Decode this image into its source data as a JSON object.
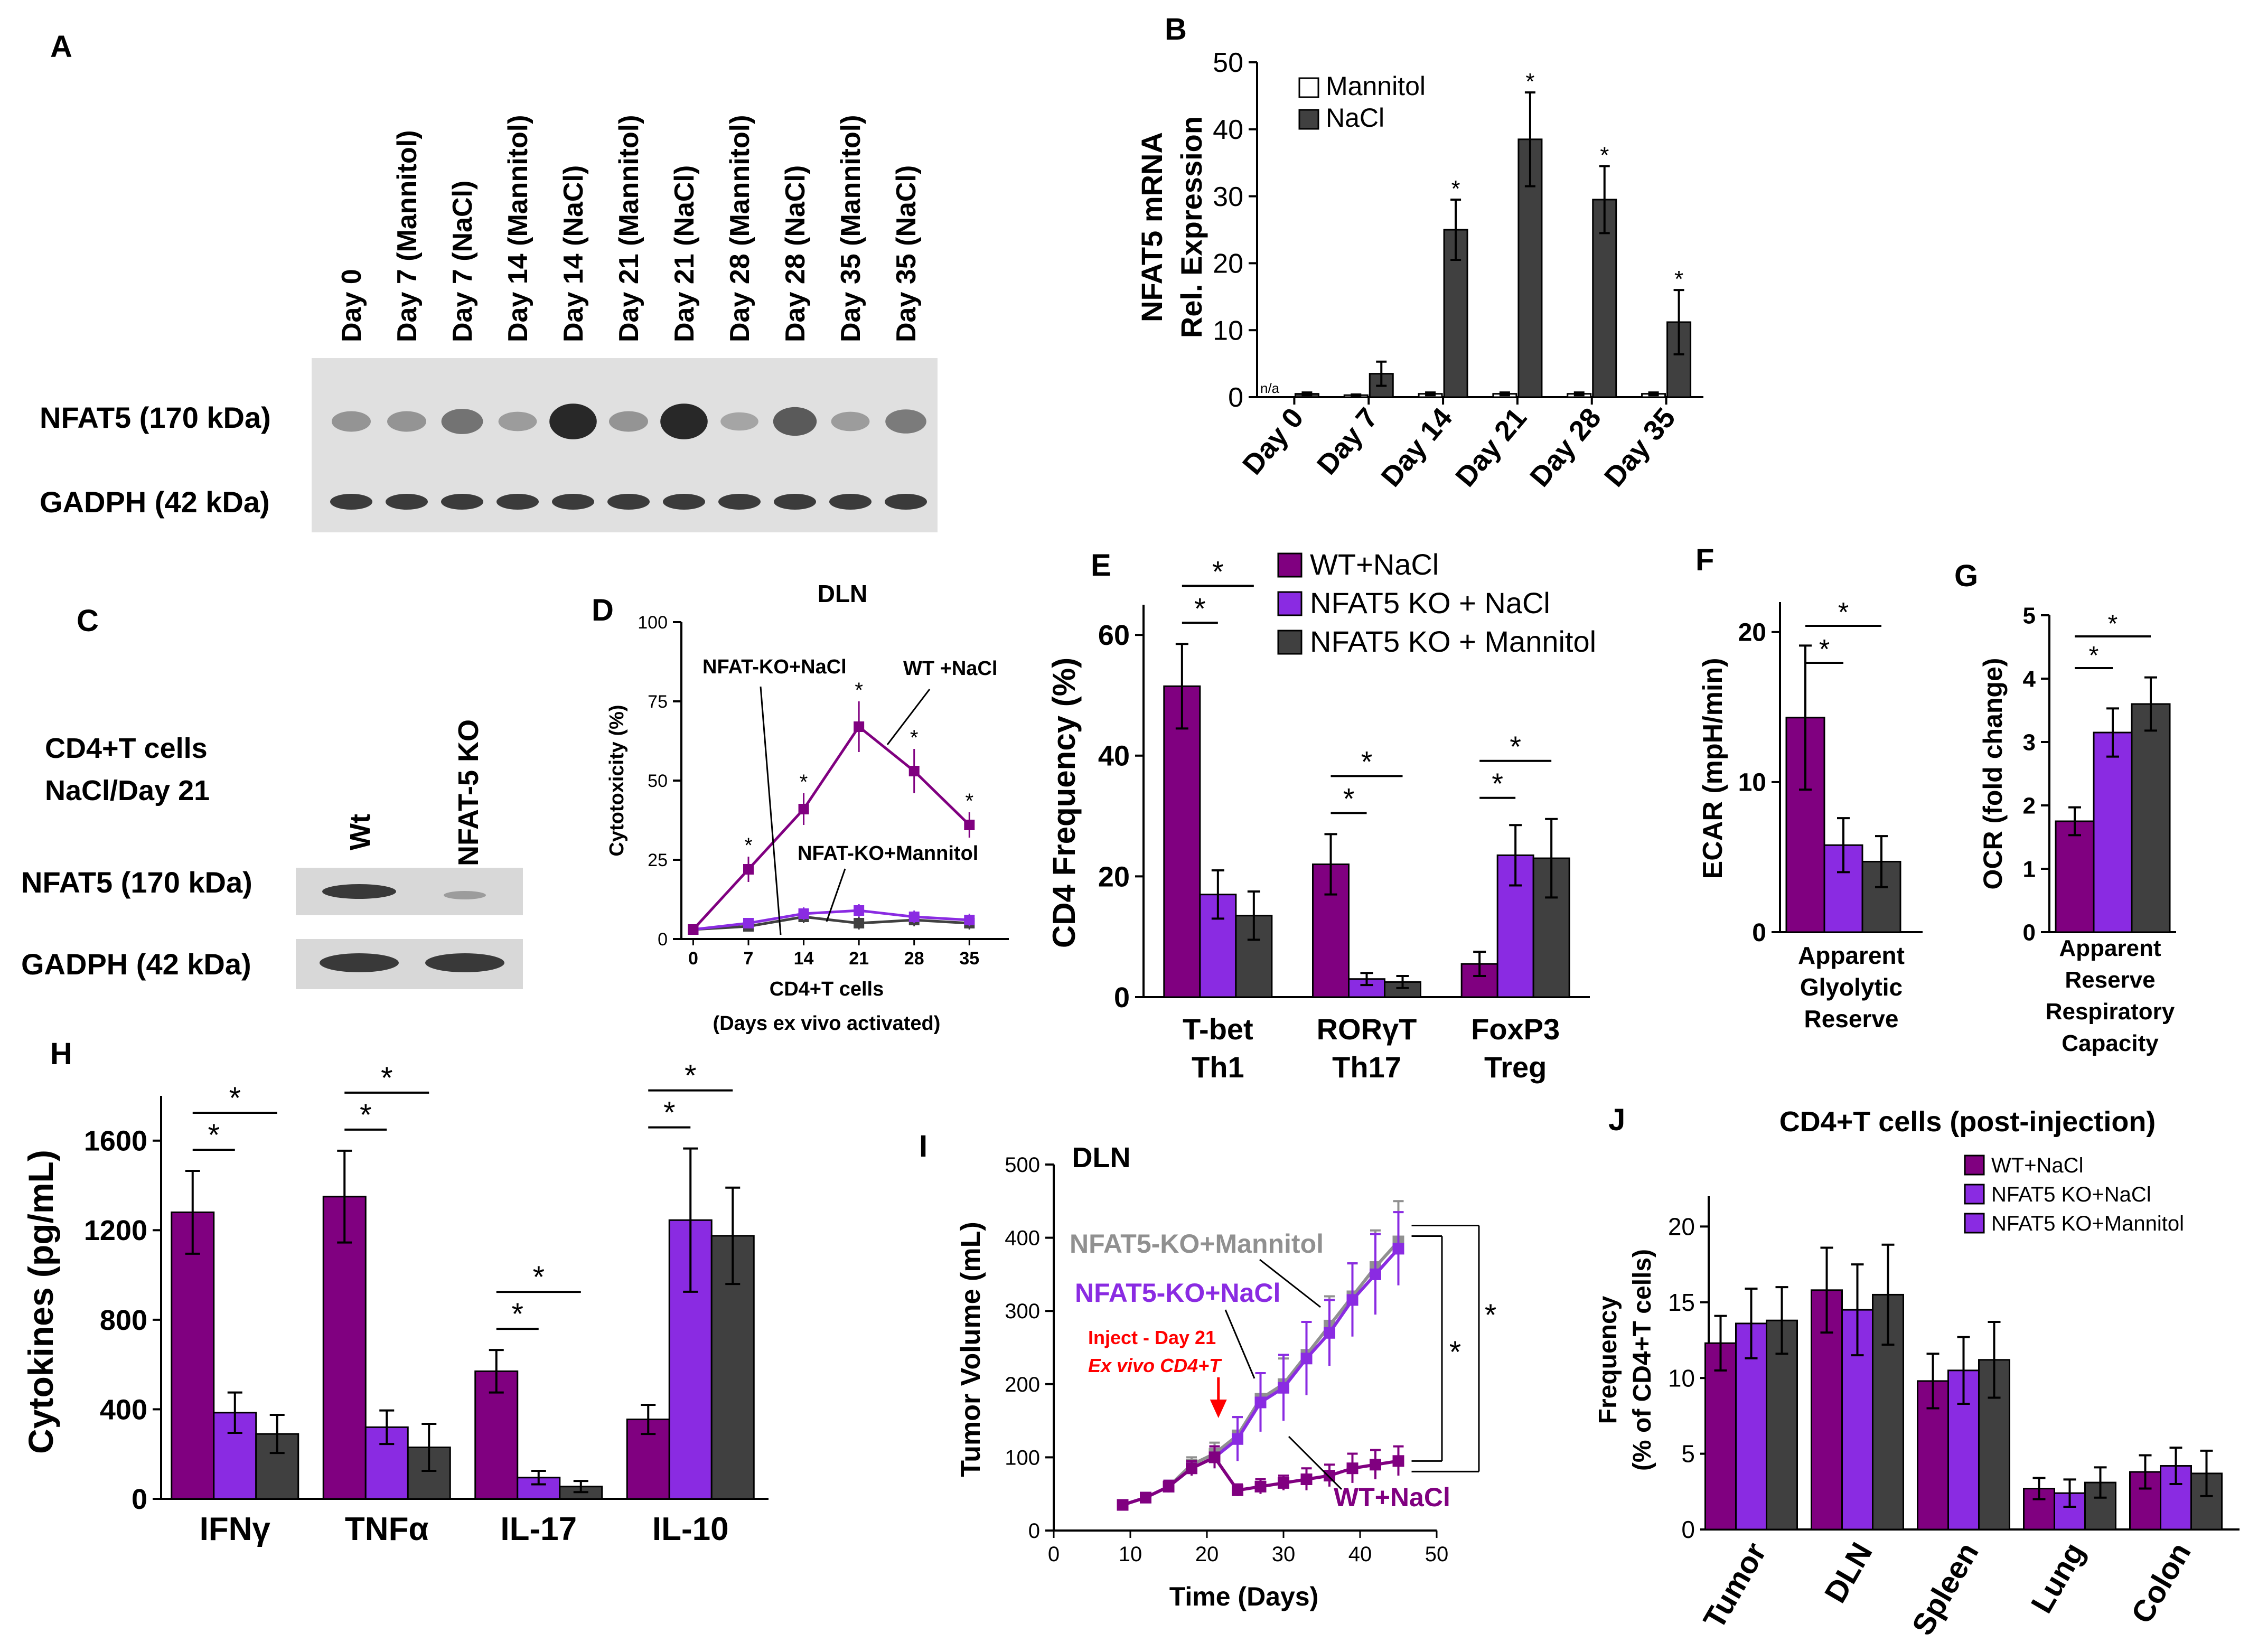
{
  "chart_data": [
    {
      "panel": "A",
      "type": "blot",
      "lanes": [
        "Day 0",
        "Day 7 (Mannitol)",
        "Day 7 (NaCl)",
        "Day 14 (Mannitol)",
        "Day 14 (NaCl)",
        "Day 21 (Mannitol)",
        "Day 21 (NaCl)",
        "Day 28 (Mannitol)",
        "Day 28 (NaCl)",
        "Day 35 (Mannitol)",
        "Day 35 (NaCl)"
      ],
      "rows": [
        "NFAT5 (170 kDa)",
        "GADPH (42 kDa)"
      ],
      "nfat5_intensity": [
        0.25,
        0.25,
        0.45,
        0.2,
        0.9,
        0.25,
        0.9,
        0.15,
        0.6,
        0.2,
        0.4
      ],
      "gadph_intensity": [
        0.8,
        0.8,
        0.8,
        0.8,
        0.8,
        0.8,
        0.8,
        0.8,
        0.8,
        0.8,
        0.8
      ]
    },
    {
      "panel": "B",
      "type": "bar",
      "ylabel": [
        "NFAT5 mRNA",
        "Rel. Expression"
      ],
      "categories": [
        "Day 0",
        "Day 7",
        "Day 14",
        "Day 21",
        "Day 28",
        "Day 35"
      ],
      "ylim": [
        0,
        50
      ],
      "yticks": [
        0,
        10,
        20,
        30,
        40,
        50
      ],
      "series": [
        {
          "name": "Mannitol",
          "color": "#ffffff",
          "values": [
            0,
            0.3,
            0.5,
            0.5,
            0.5,
            0.5
          ],
          "errors": [
            0,
            0.1,
            0.2,
            0.2,
            0.2,
            0.2
          ]
        },
        {
          "name": "NaCl",
          "color": "#404040",
          "values": [
            0.5,
            3.5,
            25,
            38.5,
            29.5,
            11.2
          ],
          "errors": [
            0.2,
            1.8,
            4.5,
            7,
            5,
            4.8
          ]
        }
      ],
      "na_label": "n/a",
      "star": "*",
      "significant": [
        false,
        false,
        true,
        true,
        true,
        true
      ]
    },
    {
      "panel": "C",
      "type": "blot",
      "title_lines": [
        "CD4+T cells",
        "NaCl/Day 21"
      ],
      "lanes": [
        "Wt",
        "NFAT-5 KO"
      ],
      "rows": [
        "NFAT5 (170 kDa)",
        "GADPH (42 kDa)"
      ]
    },
    {
      "panel": "D",
      "type": "line",
      "title": "DLN",
      "ylabel": "Cytotoxicity (%)",
      "xlabel": [
        "CD4+T cells",
        "(Days ex vivo activated)"
      ],
      "x": [
        0,
        7,
        14,
        21,
        28,
        35
      ],
      "ylim": [
        0,
        100
      ],
      "yticks": [
        0,
        25,
        50,
        75,
        100
      ],
      "series": [
        {
          "name": "WT +NaCl",
          "color": "#800080",
          "values": [
            3,
            22,
            41,
            67,
            53,
            36
          ],
          "errors": [
            1,
            4,
            5,
            8,
            7,
            4
          ]
        },
        {
          "name": "NFAT-KO+NaCl",
          "color": "#8a2be2",
          "values": [
            3,
            5,
            8,
            9,
            7,
            6
          ],
          "errors": [
            1,
            1,
            2,
            2,
            2,
            2
          ]
        },
        {
          "name": "NFAT-KO+Mannitol",
          "color": "#404040",
          "values": [
            3,
            4,
            7,
            5,
            6,
            5
          ],
          "errors": [
            1,
            1,
            2,
            2,
            2,
            2
          ]
        }
      ],
      "annotations": [
        "NFAT-KO+NaCl",
        "WT +NaCl",
        "NFAT-KO+Mannitol"
      ]
    },
    {
      "panel": "E",
      "type": "bar",
      "ylabel": "CD4 Frequency (%)",
      "categories": [
        [
          "T-bet",
          "Th1"
        ],
        [
          "RORγT",
          "Th17"
        ],
        [
          "FoxP3",
          "Treg"
        ]
      ],
      "ylim": [
        0,
        65
      ],
      "yticks": [
        0,
        20,
        40,
        60
      ],
      "series": [
        {
          "name": "WT+NaCl",
          "color": "#800080",
          "values": [
            51.5,
            22,
            5.5
          ],
          "errors": [
            7,
            5,
            2
          ]
        },
        {
          "name": "NFAT5 KO + NaCl",
          "color": "#8a2be2",
          "values": [
            17,
            3,
            23.5
          ],
          "errors": [
            4,
            1,
            5
          ]
        },
        {
          "name": "NFAT5 KO + Mannitol",
          "color": "#404040",
          "values": [
            13.5,
            2.5,
            23
          ],
          "errors": [
            4,
            1,
            6.5
          ]
        }
      ]
    },
    {
      "panel": "F",
      "type": "bar",
      "ylabel": "ECAR (mpH/min)",
      "xlabel": [
        "Apparent",
        "Glyolytic",
        "Reserve"
      ],
      "ylim": [
        0,
        22
      ],
      "yticks": [
        0,
        10,
        20
      ],
      "values": [
        14.3,
        5.8,
        4.7
      ],
      "errors": [
        4.8,
        1.8,
        1.7
      ],
      "colors": [
        "#800080",
        "#8a2be2",
        "#404040"
      ]
    },
    {
      "panel": "G",
      "type": "bar",
      "ylabel": "OCR (fold change)",
      "xlabel": [
        "Apparent",
        "Reserve",
        "Respiratory",
        "Capacity"
      ],
      "ylim": [
        0,
        5
      ],
      "yticks": [
        0,
        1,
        2,
        3,
        4,
        5
      ],
      "values": [
        1.75,
        3.15,
        3.6
      ],
      "errors": [
        0.22,
        0.38,
        0.42
      ],
      "colors": [
        "#800080",
        "#8a2be2",
        "#404040"
      ]
    },
    {
      "panel": "H",
      "type": "bar",
      "ylabel": "Cytokines (pg/mL)",
      "categories": [
        "IFNγ",
        "TNFα",
        "IL-17",
        "IL-10"
      ],
      "ylim": [
        0,
        1800
      ],
      "yticks": [
        0,
        400,
        800,
        1200,
        1600
      ],
      "series": [
        {
          "name": "WT+NaCl",
          "color": "#800080",
          "values": [
            1280,
            1350,
            570,
            355
          ],
          "errors": [
            185,
            205,
            95,
            65
          ]
        },
        {
          "name": "NFAT5 KO + NaCl",
          "color": "#8a2be2",
          "values": [
            385,
            320,
            95,
            1245
          ],
          "errors": [
            90,
            75,
            30,
            320
          ]
        },
        {
          "name": "NFAT5 KO + Mannitol",
          "color": "#404040",
          "values": [
            290,
            230,
            55,
            1175
          ],
          "errors": [
            85,
            105,
            25,
            215
          ]
        }
      ]
    },
    {
      "panel": "I",
      "type": "line",
      "title": "DLN",
      "ylabel": "Tumor Volume (mL)",
      "xlabel": "Time (Days)",
      "xlim": [
        0,
        50
      ],
      "xticks": [
        0,
        10,
        20,
        30,
        40,
        50
      ],
      "ylim": [
        0,
        500
      ],
      "yticks": [
        0,
        100,
        200,
        300,
        400,
        500
      ],
      "series": [
        {
          "name": "NFAT5-KO+Mannitol",
          "color": "#909090",
          "x": [
            9,
            12,
            15,
            18,
            21,
            24,
            27,
            30,
            33,
            36,
            39,
            42,
            45
          ],
          "values": [
            35,
            45,
            60,
            90,
            105,
            130,
            180,
            200,
            240,
            280,
            320,
            360,
            395
          ],
          "errors": [
            5,
            5,
            8,
            10,
            15,
            25,
            35,
            35,
            45,
            40,
            45,
            50,
            55
          ]
        },
        {
          "name": "NFAT5-KO+NaCl",
          "color": "#8a2be2",
          "x": [
            9,
            12,
            15,
            18,
            21,
            24,
            27,
            30,
            33,
            36,
            39,
            42,
            45
          ],
          "values": [
            35,
            45,
            60,
            85,
            100,
            125,
            175,
            195,
            235,
            270,
            315,
            350,
            385
          ],
          "errors": [
            5,
            5,
            8,
            10,
            15,
            30,
            40,
            45,
            50,
            45,
            50,
            55,
            50
          ]
        },
        {
          "name": "WT+NaCl",
          "color": "#800080",
          "x": [
            9,
            12,
            15,
            18,
            21,
            24,
            27,
            30,
            33,
            36,
            39,
            42,
            45
          ],
          "values": [
            35,
            45,
            60,
            85,
            100,
            55,
            60,
            65,
            70,
            75,
            85,
            90,
            95
          ],
          "errors": [
            5,
            5,
            8,
            10,
            15,
            8,
            10,
            10,
            15,
            15,
            20,
            20,
            20
          ]
        }
      ],
      "inject_label": [
        "Inject - Day 21",
        "Ex vivo CD4+T"
      ]
    },
    {
      "panel": "J",
      "type": "bar",
      "title": "CD4+T cells (post-injection)",
      "ylabel": [
        "Frequency",
        "(% of CD4+T cells)"
      ],
      "categories": [
        "Tumor",
        "DLN",
        "Spleen",
        "Lung",
        "Colon"
      ],
      "ylim": [
        0,
        22
      ],
      "yticks": [
        0,
        5,
        10,
        15,
        20
      ],
      "series": [
        {
          "name": "WT+NaCl",
          "color": "#800080",
          "values": [
            12.3,
            15.8,
            9.8,
            2.7,
            3.8
          ],
          "errors": [
            1.8,
            2.8,
            1.8,
            0.7,
            1.1
          ]
        },
        {
          "name": "NFAT5 KO+NaCl",
          "color": "#8a2be2",
          "values": [
            13.6,
            14.5,
            10.5,
            2.4,
            4.2
          ],
          "errors": [
            2.3,
            3,
            2.2,
            0.9,
            1.2
          ]
        },
        {
          "name": "NFAT5 KO+Mannitol",
          "color": "#404040",
          "values": [
            13.8,
            15.5,
            11.2,
            3.1,
            3.7
          ],
          "errors": [
            2.2,
            3.3,
            2.5,
            1,
            1.5
          ]
        }
      ],
      "legend_colors": [
        "#800080",
        "#8a2be2",
        "#8a2be2"
      ]
    }
  ]
}
